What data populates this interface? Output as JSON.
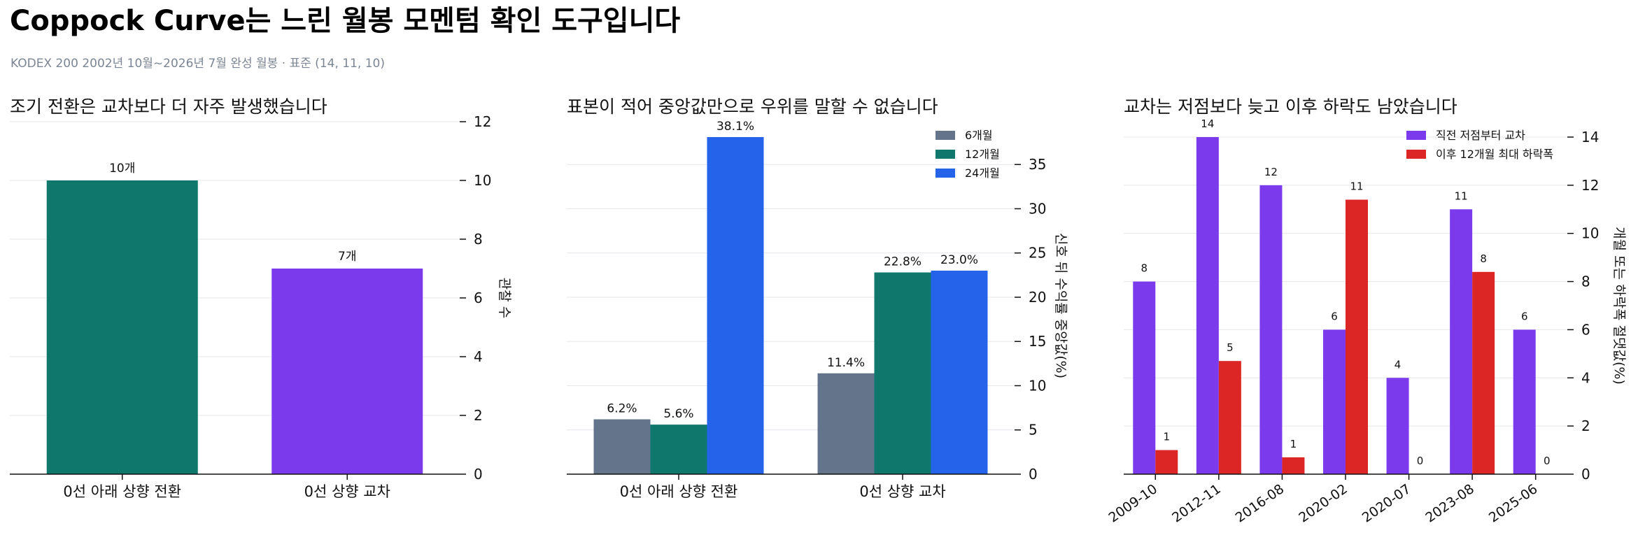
{
  "title": "Coppock Curve는 느린 월봉 모멘텀 확인 도구입니다",
  "subtitle": "KODEX 200 2002년 10월~2026년 7월 완성 월봉 · 표준 (14, 11, 10)",
  "colors": {
    "teal": "#10776c",
    "purple": "#7c3aed",
    "slate": "#64748b",
    "blue": "#2563eb",
    "red": "#dc2626",
    "grid": "#e5e7eb",
    "axis": "#111111"
  },
  "chart_data": [
    {
      "type": "bar",
      "title": "조기 전환은 교차보다 더 자주 발생했습니다",
      "categories": [
        "0선 아래 상향 전환",
        "0선 상향 교차"
      ],
      "values": [
        10,
        7
      ],
      "data_labels": [
        "10개",
        "7개"
      ],
      "bar_colors": [
        "#10776c",
        "#7c3aed"
      ],
      "ylabel": "관찰 수",
      "ylim": [
        0,
        12
      ],
      "yticks": [
        0,
        2,
        4,
        6,
        8,
        10,
        12
      ],
      "y_axis_side": "right",
      "grid": true
    },
    {
      "type": "bar",
      "title": "표본이 적어 중앙값만으로 우위를 말할 수 없습니다",
      "categories": [
        "0선 아래 상향 전환",
        "0선 상향 교차"
      ],
      "series": [
        {
          "name": "6개월",
          "color": "#64748b",
          "values": [
            6.2,
            11.4
          ],
          "labels": [
            "6.2%",
            "11.4%"
          ]
        },
        {
          "name": "12개월",
          "color": "#10776c",
          "values": [
            5.6,
            22.8
          ],
          "labels": [
            "5.6%",
            "22.8%"
          ]
        },
        {
          "name": "24개월",
          "color": "#2563eb",
          "values": [
            38.1,
            23.0
          ],
          "labels": [
            "38.1%",
            "23.0%"
          ]
        }
      ],
      "ylabel": "신호 뒤 수익률 중앙값(%)",
      "ylim": [
        0,
        38.1
      ],
      "yticks": [
        0,
        5,
        10,
        15,
        20,
        25,
        30,
        35
      ],
      "y_axis_side": "right",
      "legend": "top-right",
      "grid": true
    },
    {
      "type": "bar",
      "title": "교차는 저점보다 늦고 이후 하락도 남았습니다",
      "categories": [
        "2009-10",
        "2012-11",
        "2016-08",
        "2020-02",
        "2020-07",
        "2023-08",
        "2025-06"
      ],
      "series": [
        {
          "name": "직전 저점부터 교차",
          "color": "#7c3aed",
          "values": [
            8,
            14,
            12,
            6,
            4,
            11,
            6
          ],
          "labels": [
            "8",
            "14",
            "12",
            "6",
            "4",
            "11",
            "6"
          ]
        },
        {
          "name": "이후 12개월 최대 하락폭",
          "color": "#dc2626",
          "values": [
            1.0,
            4.7,
            0.7,
            11.4,
            0,
            8.4,
            0
          ],
          "labels": [
            "1",
            "5",
            "1",
            "11",
            "0",
            "8",
            "0"
          ]
        }
      ],
      "ylabel": "개월 또는 하락폭 절댓값(%)",
      "ylim": [
        0,
        14
      ],
      "yticks": [
        0,
        2,
        4,
        6,
        8,
        10,
        12,
        14
      ],
      "y_axis_side": "right",
      "legend": "top-right",
      "grid": true
    }
  ]
}
